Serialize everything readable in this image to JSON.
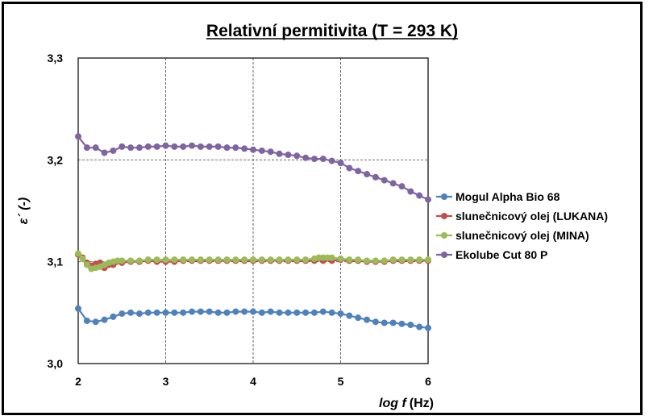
{
  "chart_data": {
    "type": "line",
    "title": "Relativní permitivita (T = 293 K)",
    "xlabel": "log f",
    "xlabel_unit": "(Hz)",
    "ylabel": "ε´ (-)",
    "xlim": [
      2,
      6
    ],
    "ylim": [
      3.0,
      3.3
    ],
    "x_ticks": [
      "2",
      "3",
      "4",
      "5",
      "6"
    ],
    "y_ticks": [
      "3,0",
      "3,1",
      "3,2",
      "3,3"
    ],
    "grid": "dashed",
    "legend_position": "right",
    "series": [
      {
        "name": "Mogul Alpha Bio 68",
        "color": "#4f81bd",
        "x": [
          2.0,
          2.1,
          2.2,
          2.3,
          2.4,
          2.5,
          2.6,
          2.7,
          2.8,
          2.9,
          3.0,
          3.1,
          3.2,
          3.3,
          3.4,
          3.5,
          3.6,
          3.7,
          3.8,
          3.9,
          4.0,
          4.1,
          4.2,
          4.3,
          4.4,
          4.5,
          4.6,
          4.7,
          4.8,
          4.9,
          5.0,
          5.1,
          5.2,
          5.3,
          5.4,
          5.5,
          5.6,
          5.7,
          5.8,
          5.9,
          6.0
        ],
        "y": [
          3.054,
          3.042,
          3.041,
          3.043,
          3.046,
          3.049,
          3.05,
          3.049,
          3.05,
          3.05,
          3.05,
          3.05,
          3.05,
          3.051,
          3.051,
          3.051,
          3.05,
          3.05,
          3.051,
          3.051,
          3.051,
          3.05,
          3.051,
          3.05,
          3.05,
          3.05,
          3.05,
          3.05,
          3.051,
          3.05,
          3.049,
          3.047,
          3.045,
          3.043,
          3.041,
          3.04,
          3.04,
          3.039,
          3.038,
          3.036,
          3.035
        ]
      },
      {
        "name": "slunečnicový olej (LUKANA)",
        "color": "#c0504d",
        "x": [
          2.0,
          2.05,
          2.1,
          2.15,
          2.2,
          2.25,
          2.3,
          2.35,
          2.4,
          2.5,
          2.6,
          2.7,
          2.8,
          2.9,
          3.0,
          3.1,
          3.2,
          3.3,
          3.4,
          3.5,
          3.6,
          3.7,
          3.8,
          3.9,
          4.0,
          4.1,
          4.2,
          4.3,
          4.4,
          4.5,
          4.6,
          4.7,
          4.8,
          4.9,
          5.0,
          5.1,
          5.2,
          5.3,
          5.4,
          5.5,
          5.6,
          5.7,
          5.8,
          5.9,
          6.0
        ],
        "y": [
          3.107,
          3.104,
          3.099,
          3.096,
          3.098,
          3.099,
          3.094,
          3.097,
          3.097,
          3.099,
          3.1,
          3.1,
          3.101,
          3.1,
          3.1,
          3.1,
          3.101,
          3.101,
          3.101,
          3.101,
          3.101,
          3.101,
          3.101,
          3.101,
          3.101,
          3.101,
          3.101,
          3.101,
          3.101,
          3.101,
          3.101,
          3.101,
          3.101,
          3.101,
          3.102,
          3.101,
          3.101,
          3.1,
          3.1,
          3.1,
          3.101,
          3.101,
          3.101,
          3.101,
          3.101
        ]
      },
      {
        "name": "slunečnicový olej (MINA)",
        "color": "#9bbb59",
        "x": [
          2.0,
          2.05,
          2.1,
          2.15,
          2.2,
          2.25,
          2.3,
          2.35,
          2.4,
          2.45,
          2.5,
          2.6,
          2.7,
          2.8,
          2.9,
          3.0,
          3.1,
          3.2,
          3.3,
          3.4,
          3.5,
          3.6,
          3.7,
          3.8,
          3.9,
          4.0,
          4.1,
          4.2,
          4.3,
          4.4,
          4.5,
          4.6,
          4.7,
          4.75,
          4.8,
          4.85,
          4.9,
          5.0,
          5.1,
          5.2,
          5.3,
          5.4,
          5.5,
          5.6,
          5.7,
          5.8,
          5.9,
          6.0
        ],
        "y": [
          3.108,
          3.103,
          3.097,
          3.093,
          3.094,
          3.095,
          3.097,
          3.099,
          3.1,
          3.101,
          3.101,
          3.101,
          3.101,
          3.102,
          3.102,
          3.102,
          3.102,
          3.102,
          3.102,
          3.102,
          3.102,
          3.102,
          3.102,
          3.102,
          3.102,
          3.102,
          3.102,
          3.102,
          3.102,
          3.102,
          3.102,
          3.102,
          3.103,
          3.104,
          3.104,
          3.104,
          3.104,
          3.103,
          3.102,
          3.102,
          3.101,
          3.101,
          3.101,
          3.102,
          3.102,
          3.102,
          3.102,
          3.102
        ]
      },
      {
        "name": "Ekolube Cut 80 P",
        "color": "#8064a2",
        "x": [
          2.0,
          2.1,
          2.2,
          2.3,
          2.4,
          2.5,
          2.6,
          2.7,
          2.8,
          2.9,
          3.0,
          3.1,
          3.2,
          3.3,
          3.4,
          3.5,
          3.6,
          3.7,
          3.8,
          3.9,
          4.0,
          4.1,
          4.2,
          4.3,
          4.4,
          4.5,
          4.6,
          4.7,
          4.8,
          4.9,
          5.0,
          5.1,
          5.2,
          5.3,
          5.4,
          5.5,
          5.6,
          5.7,
          5.8,
          5.9,
          6.0
        ],
        "y": [
          3.223,
          3.212,
          3.212,
          3.207,
          3.209,
          3.213,
          3.212,
          3.212,
          3.213,
          3.213,
          3.214,
          3.213,
          3.213,
          3.214,
          3.213,
          3.213,
          3.213,
          3.212,
          3.212,
          3.211,
          3.21,
          3.209,
          3.208,
          3.206,
          3.205,
          3.204,
          3.202,
          3.201,
          3.201,
          3.199,
          3.197,
          3.192,
          3.189,
          3.186,
          3.183,
          3.18,
          3.177,
          3.174,
          3.169,
          3.165,
          3.161
        ]
      }
    ]
  }
}
